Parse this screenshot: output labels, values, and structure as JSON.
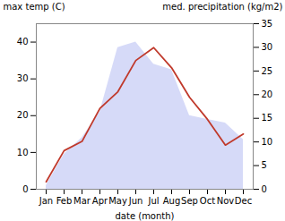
{
  "chart_data": {
    "type": "line",
    "categories": [
      "Jan",
      "Feb",
      "Mar",
      "Apr",
      "May",
      "Jun",
      "Jul",
      "Aug",
      "Sep",
      "Oct",
      "Nov",
      "Dec"
    ],
    "series": [
      {
        "type": "area",
        "color": "#c5caf5",
        "values": [
          1.0,
          9.5,
          14.0,
          21.0,
          38.5,
          40.0,
          34.0,
          32.5,
          20.0,
          19.0,
          18.0,
          13.5
        ]
      },
      {
        "type": "line",
        "color": "#c0392b",
        "values": [
          2.0,
          10.5,
          13.0,
          22.0,
          26.5,
          35.0,
          38.5,
          33.0,
          25.0,
          19.0,
          12.0,
          15.0
        ]
      }
    ],
    "xlabel": "date (month)",
    "ylabel": "max temp (C)",
    "y2label": "med. precipitation (kg/m2)",
    "ylim": [
      0,
      45
    ],
    "yticks": [
      0,
      10,
      20,
      30,
      40
    ],
    "y2lim": [
      0,
      35
    ],
    "y2ticks": [
      0,
      5,
      10,
      15,
      20,
      25,
      30,
      35
    ],
    "grid": false
  }
}
